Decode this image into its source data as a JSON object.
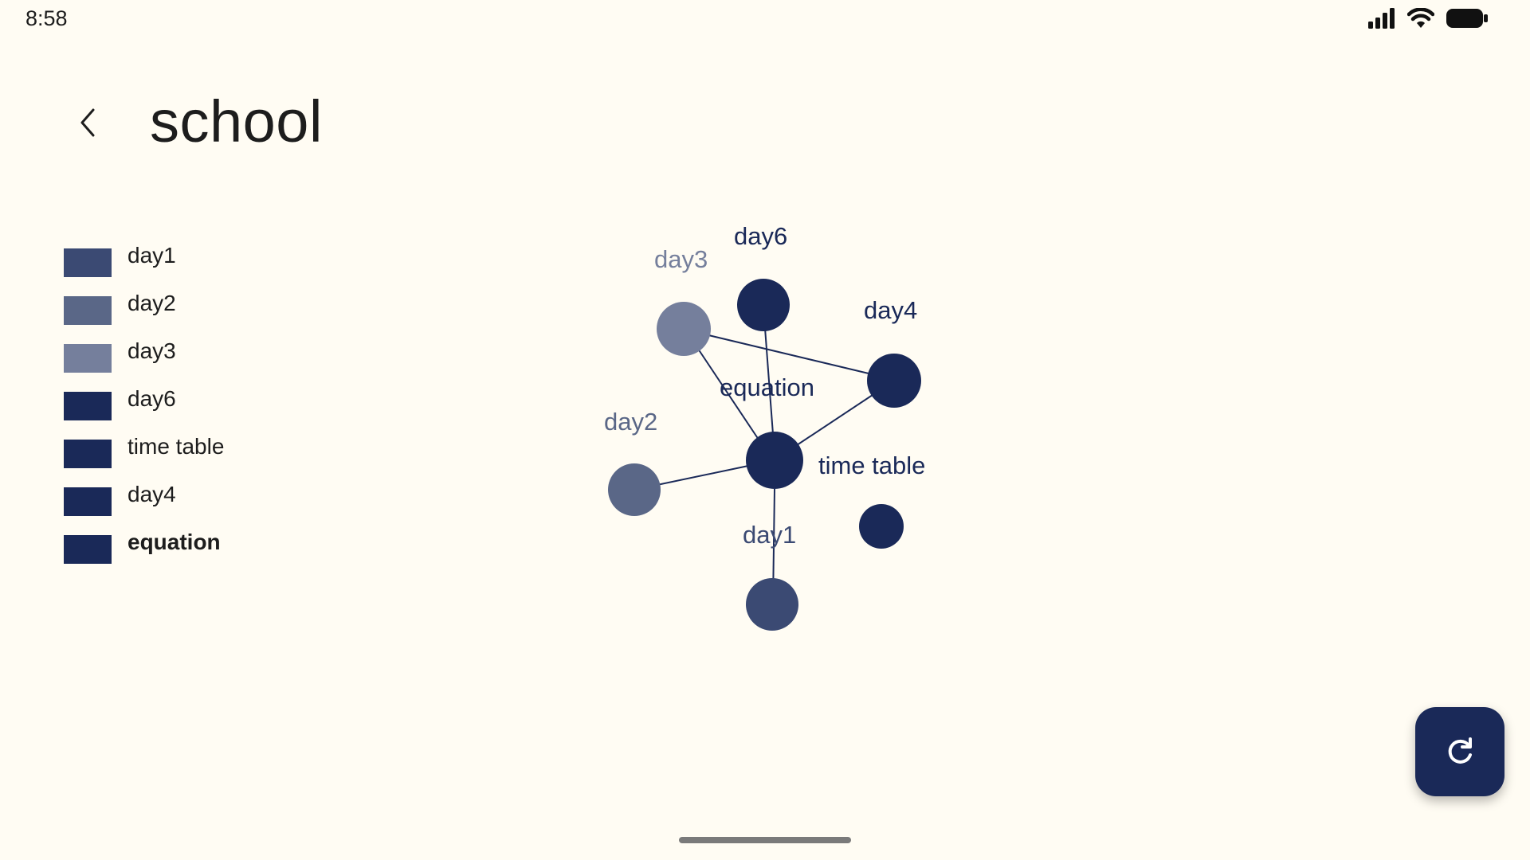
{
  "status_bar": {
    "time": "8:58"
  },
  "header": {
    "title": "school",
    "back_icon": "chevron-left-icon"
  },
  "legend": [
    {
      "label": "day1",
      "color": "#3b4a73",
      "bold": false
    },
    {
      "label": "day2",
      "color": "#5a6787",
      "bold": false
    },
    {
      "label": "day3",
      "color": "#757f9c",
      "bold": false
    },
    {
      "label": "day6",
      "color": "#1a2958",
      "bold": false
    },
    {
      "label": "time table",
      "color": "#1a2958",
      "bold": false
    },
    {
      "label": "day4",
      "color": "#1a2958",
      "bold": false
    },
    {
      "label": "equation",
      "color": "#1a2958",
      "bold": true
    }
  ],
  "graph": {
    "nodes": [
      {
        "id": "day6",
        "label": "day6",
        "color": "#1a2958"
      },
      {
        "id": "day3",
        "label": "day3",
        "color": "#757f9c"
      },
      {
        "id": "day4",
        "label": "day4",
        "color": "#1a2958"
      },
      {
        "id": "equation",
        "label": "equation",
        "color": "#1a2958"
      },
      {
        "id": "time_table",
        "label": "time table",
        "color": "#1a2958"
      },
      {
        "id": "day2",
        "label": "day2",
        "color": "#5a6787"
      },
      {
        "id": "day1",
        "label": "day1",
        "color": "#3b4a73"
      }
    ],
    "edges": [
      [
        "day3",
        "day4"
      ],
      [
        "day3",
        "time_table"
      ],
      [
        "day6",
        "time_table"
      ],
      [
        "day4",
        "time_table"
      ],
      [
        "day2",
        "time_table"
      ],
      [
        "time_table",
        "day1"
      ]
    ],
    "unlabeled_node_color": "#1a2958"
  },
  "fab": {
    "icon": "refresh-icon"
  },
  "colors": {
    "background": "#fffcf3",
    "accent": "#1a2958"
  }
}
